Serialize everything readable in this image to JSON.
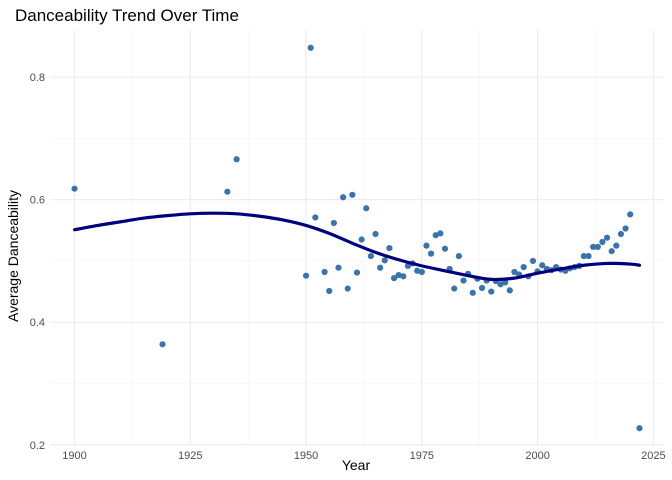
{
  "chart_data": {
    "type": "scatter",
    "title": "Danceability Trend Over Time",
    "xlabel": "Year",
    "ylabel": "Average Danceability",
    "xlim": [
      1894.7,
      2027.3
    ],
    "ylim": [
      0.198,
      0.877
    ],
    "x_ticks": [
      1900,
      1925,
      1950,
      1975,
      2000,
      2025
    ],
    "y_ticks": [
      0.2,
      0.4,
      0.6,
      0.8
    ],
    "grid": true,
    "colors": {
      "points": "#3b73ab",
      "trend": "#00007f"
    },
    "series": [
      {
        "name": "Average Danceability",
        "kind": "points",
        "x": [
          1900,
          1919,
          1933,
          1935,
          1950,
          1951,
          1952,
          1954,
          1955,
          1956,
          1957,
          1958,
          1959,
          1960,
          1961,
          1962,
          1963,
          1964,
          1965,
          1966,
          1967,
          1968,
          1969,
          1970,
          1971,
          1972,
          1973,
          1974,
          1975,
          1976,
          1977,
          1978,
          1979,
          1980,
          1981,
          1982,
          1983,
          1984,
          1985,
          1986,
          1987,
          1988,
          1989,
          1990,
          1991,
          1992,
          1993,
          1994,
          1995,
          1996,
          1997,
          1998,
          1999,
          2000,
          2001,
          2002,
          2003,
          2004,
          2005,
          2006,
          2007,
          2008,
          2009,
          2010,
          2011,
          2012,
          2013,
          2014,
          2015,
          2016,
          2017,
          2018,
          2019,
          2020,
          2022
        ],
        "y": [
          0.618,
          0.364,
          0.613,
          0.666,
          0.476,
          0.848,
          0.571,
          0.482,
          0.451,
          0.562,
          0.489,
          0.604,
          0.455,
          0.608,
          0.481,
          0.535,
          0.586,
          0.508,
          0.544,
          0.489,
          0.501,
          0.521,
          0.472,
          0.477,
          0.475,
          0.492,
          0.496,
          0.484,
          0.482,
          0.525,
          0.512,
          0.542,
          0.545,
          0.52,
          0.487,
          0.455,
          0.508,
          0.468,
          0.479,
          0.448,
          0.471,
          0.456,
          0.468,
          0.45,
          0.467,
          0.462,
          0.465,
          0.452,
          0.482,
          0.478,
          0.49,
          0.475,
          0.5,
          0.483,
          0.493,
          0.487,
          0.485,
          0.49,
          0.486,
          0.484,
          0.488,
          0.49,
          0.492,
          0.508,
          0.508,
          0.523,
          0.523,
          0.531,
          0.538,
          0.516,
          0.525,
          0.544,
          0.553,
          0.576,
          0.227
        ]
      },
      {
        "name": "Smoothed trend",
        "kind": "line",
        "x": [
          1900,
          1905,
          1910,
          1915,
          1920,
          1925,
          1930,
          1935,
          1940,
          1945,
          1950,
          1955,
          1960,
          1965,
          1970,
          1975,
          1980,
          1985,
          1990,
          1995,
          2000,
          2005,
          2010,
          2015,
          2020,
          2022
        ],
        "y": [
          0.551,
          0.558,
          0.564,
          0.57,
          0.574,
          0.577,
          0.578,
          0.577,
          0.573,
          0.567,
          0.558,
          0.545,
          0.529,
          0.514,
          0.502,
          0.492,
          0.484,
          0.476,
          0.47,
          0.472,
          0.48,
          0.487,
          0.493,
          0.496,
          0.495,
          0.493
        ]
      }
    ]
  }
}
